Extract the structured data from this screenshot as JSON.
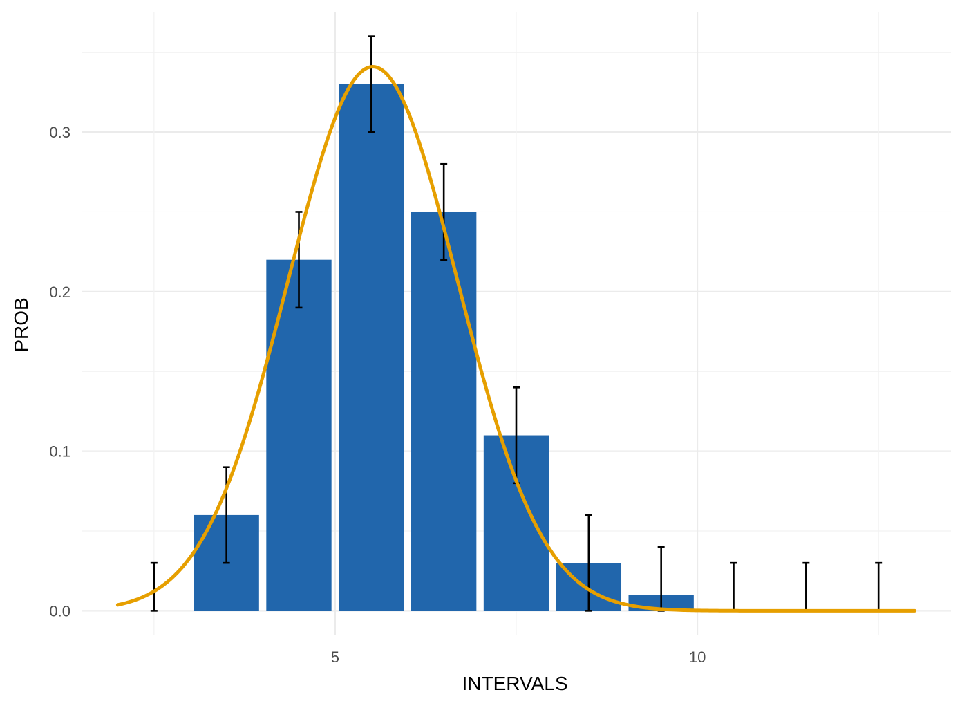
{
  "chart_data": {
    "type": "bar",
    "xlabel": "INTERVALS",
    "ylabel": "PROB",
    "xlim": [
      1.5,
      13.5
    ],
    "ylim": [
      -0.015,
      0.375
    ],
    "x_ticks": [
      5,
      10
    ],
    "x_tick_labels": [
      "5",
      "10"
    ],
    "y_ticks": [
      0.0,
      0.1,
      0.2,
      0.3
    ],
    "y_tick_labels": [
      "0.0",
      "0.1",
      "0.2",
      "0.3"
    ],
    "grid": true,
    "legend": "none",
    "bars": {
      "x": [
        2.5,
        3.5,
        4.5,
        5.5,
        6.5,
        7.5,
        8.5,
        9.5,
        10.5,
        11.5,
        12.5
      ],
      "values": [
        0.0,
        0.06,
        0.22,
        0.33,
        0.25,
        0.11,
        0.03,
        0.01,
        0.0,
        0.0,
        0.0
      ],
      "bar_width": 0.9,
      "color": "#2166ac"
    },
    "error_bars": {
      "x": [
        2.5,
        3.5,
        4.5,
        5.5,
        6.5,
        7.5,
        8.5,
        9.5,
        10.5,
        11.5,
        12.5
      ],
      "lower": [
        0.0,
        0.03,
        0.19,
        0.3,
        0.22,
        0.08,
        0.0,
        0.0,
        0.0,
        0.0,
        0.0
      ],
      "upper": [
        0.03,
        0.09,
        0.25,
        0.36,
        0.28,
        0.14,
        0.06,
        0.04,
        0.03,
        0.03,
        0.03
      ],
      "color": "#000000"
    },
    "curve": {
      "type": "line",
      "mean": 5.52,
      "sd": 1.17,
      "x_range": [
        2.0,
        13.0
      ],
      "color": "#e69f00"
    }
  }
}
